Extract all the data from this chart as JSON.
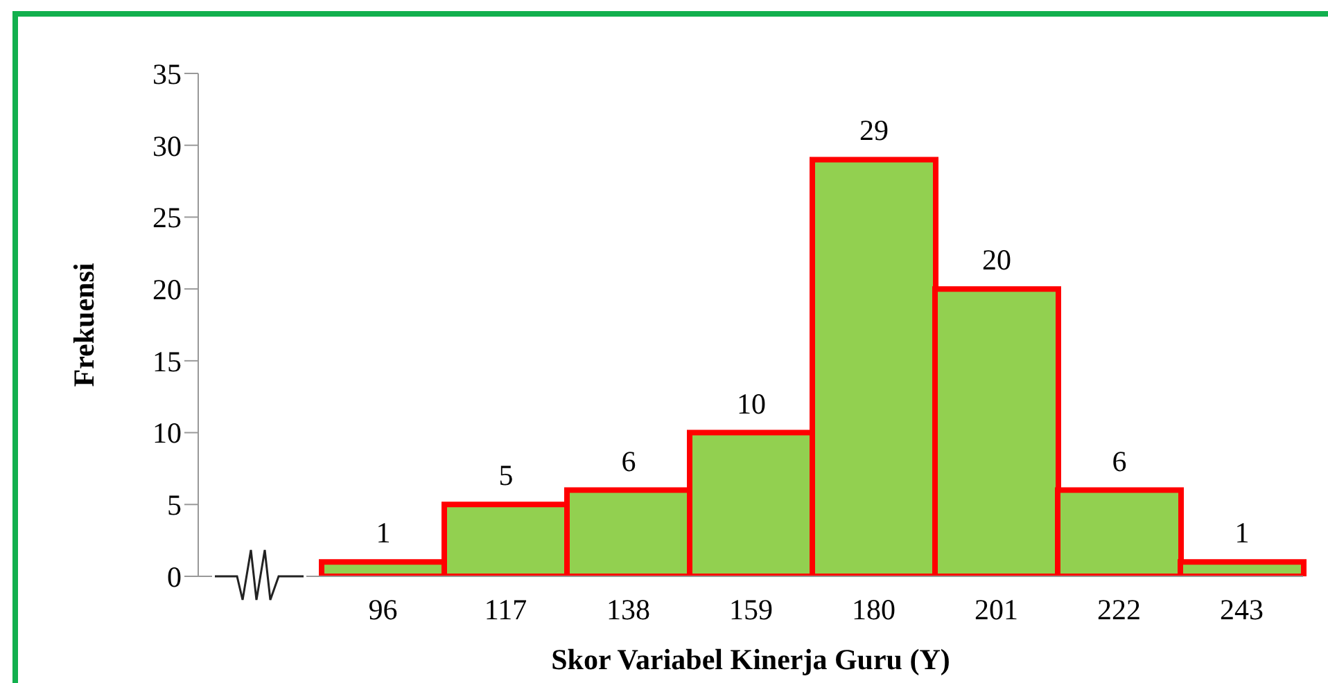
{
  "chart_data": {
    "type": "bar",
    "xlabel": "Skor Variabel Kinerja Guru (Y)",
    "ylabel": "Frekuensi",
    "categories": [
      "96",
      "117",
      "138",
      "159",
      "180",
      "201",
      "222",
      "243"
    ],
    "values": [
      1,
      5,
      6,
      10,
      29,
      20,
      6,
      1
    ],
    "color": "#92d050",
    "ylim": [
      0,
      35
    ],
    "yticks": [
      0,
      5,
      10,
      15,
      20,
      25,
      30,
      35
    ],
    "data_labels": true
  }
}
